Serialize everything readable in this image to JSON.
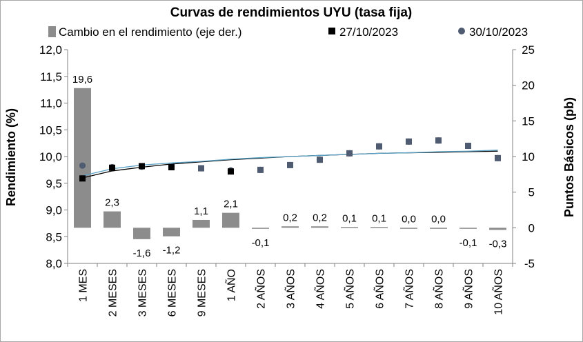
{
  "chart_data": {
    "type": "bar",
    "title": "Curvas de rendimientos UYU (tasa fija)",
    "ylabel": "Rendimiento (%)",
    "y2label": "Puntos Básicos (pb)",
    "ylim": [
      8.0,
      12.0
    ],
    "y2lim": [
      -5,
      25
    ],
    "yticks": [
      "12,0",
      "11,5",
      "11,0",
      "10,5",
      "10,0",
      "9,5",
      "9,0",
      "8,5",
      "8,0"
    ],
    "y2ticks": [
      "25",
      "20",
      "15",
      "10",
      "5",
      "0",
      "-5"
    ],
    "grid": false,
    "legend_position": "top",
    "categories": [
      "1 MES",
      "2 MESES",
      "3 MESES",
      "6 MESES",
      "9 MESES",
      "1 AÑO",
      "2 AÑOS",
      "3 AÑOS",
      "4 AÑOS",
      "5 AÑOS",
      "6 AÑOS",
      "7 AÑOS",
      "8 AÑOS",
      "9 AÑOS",
      "10 AÑOS"
    ],
    "series": [
      {
        "name": "Cambio en el rendimiento (eje der.)",
        "type": "bar",
        "axis": "right",
        "color": "#8c8c8c",
        "values": [
          19.6,
          2.3,
          -1.6,
          -1.2,
          1.1,
          2.1,
          -0.1,
          0.2,
          0.2,
          0.1,
          0.1,
          0.0,
          0.0,
          -0.1,
          -0.3
        ],
        "labels": [
          "19,6",
          "2,3",
          "-1,6",
          "-1,2",
          "1,1",
          "2,1",
          "-0,1",
          "0,2",
          "0,2",
          "0,1",
          "0,1",
          "0,0",
          "0,0",
          "-0,1",
          "-0,3"
        ]
      },
      {
        "name": "27/10/2023",
        "type": "scatter",
        "axis": "left",
        "marker": "square",
        "color": "#000000",
        "values": [
          9.59,
          9.79,
          9.82,
          9.8,
          9.78,
          9.72,
          9.75,
          9.84,
          9.94,
          10.06,
          10.19,
          10.28,
          10.3,
          10.2,
          9.97
        ]
      },
      {
        "name": "30/10/2023",
        "type": "scatter",
        "axis": "left",
        "marker": "circle",
        "color": "#4f5b70",
        "values": [
          9.83,
          9.8,
          9.81,
          9.81,
          9.78,
          9.74,
          9.75,
          9.84,
          9.94,
          10.06,
          10.19,
          10.28,
          10.3,
          10.2,
          9.97
        ]
      }
    ],
    "trendlines": [
      {
        "color": "#000000",
        "values": [
          9.6,
          9.73,
          9.8,
          9.86,
          9.9,
          9.94,
          9.97,
          10.0,
          10.02,
          10.04,
          10.06,
          10.07,
          10.08,
          10.09,
          10.1
        ]
      },
      {
        "color": "#5ba3c9",
        "values": [
          9.64,
          9.77,
          9.84,
          9.88,
          9.91,
          9.95,
          9.98,
          10.0,
          10.02,
          10.04,
          10.06,
          10.07,
          10.09,
          10.1,
          10.12
        ]
      }
    ]
  }
}
